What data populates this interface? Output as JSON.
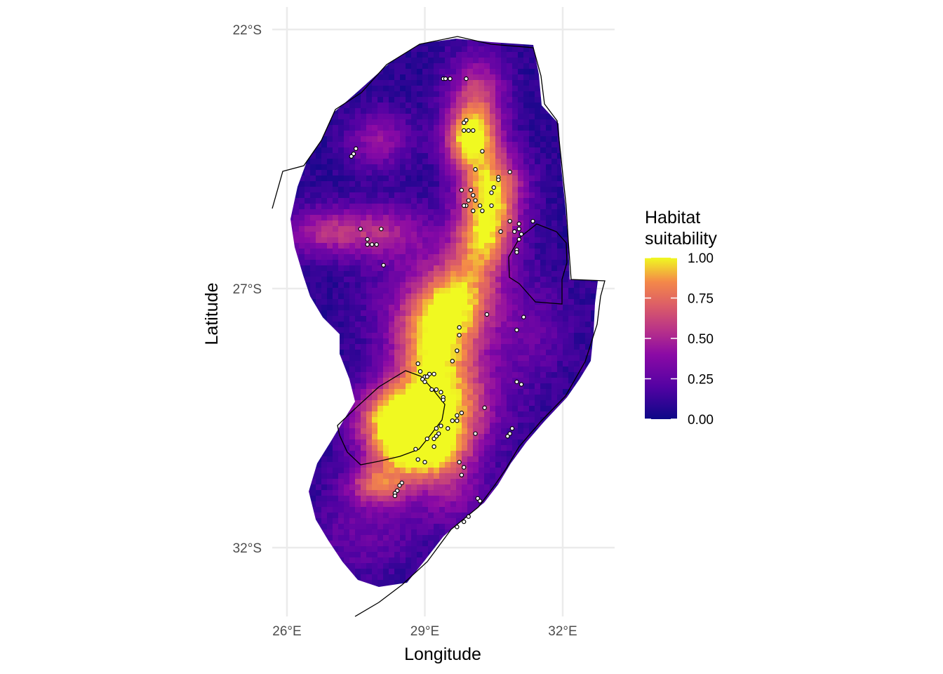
{
  "map": {
    "x_axis_title": "Longitude",
    "y_axis_title": "Latitude",
    "x_ticks": [
      {
        "value": 26,
        "label": "26°E"
      },
      {
        "value": 29,
        "label": "29°E"
      },
      {
        "value": 32,
        "label": "32°E"
      }
    ],
    "y_ticks": [
      {
        "value": -22,
        "label": "22°S"
      },
      {
        "value": -27,
        "label": "27°S"
      },
      {
        "value": -32,
        "label": "32°S"
      }
    ],
    "extent": {
      "lon": [
        25.8,
        32.9
      ],
      "lat": [
        -32.85,
        -21.85
      ]
    },
    "grid": true,
    "palette": "plasma",
    "colors": {
      "palette_stops": [
        "#0d0887",
        "#6a00a8",
        "#b12a90",
        "#e16462",
        "#fca636",
        "#f0f921"
      ],
      "grid": "#ebebeb",
      "border": "#000000",
      "point_fill": "#ffffff"
    }
  },
  "legend": {
    "title_line1": "Habitat",
    "title_line2": "suitability",
    "position": "right",
    "ticks": [
      {
        "value": 1.0,
        "label": "1.00"
      },
      {
        "value": 0.75,
        "label": "0.75"
      },
      {
        "value": 0.5,
        "label": "0.50"
      },
      {
        "value": 0.25,
        "label": "0.25"
      },
      {
        "value": 0.0,
        "label": "0.00"
      }
    ]
  },
  "occurrences": [
    [
      29.4,
      -22.95
    ],
    [
      29.45,
      -22.95
    ],
    [
      29.55,
      -22.95
    ],
    [
      29.9,
      -22.95
    ],
    [
      29.85,
      -23.8
    ],
    [
      29.9,
      -23.75
    ],
    [
      29.85,
      -23.95
    ],
    [
      29.95,
      -23.95
    ],
    [
      30.05,
      -23.95
    ],
    [
      27.5,
      -24.3
    ],
    [
      27.45,
      -24.4
    ],
    [
      27.4,
      -24.45
    ],
    [
      30.25,
      -24.35
    ],
    [
      30.1,
      -24.7
    ],
    [
      30.85,
      -24.75
    ],
    [
      30.6,
      -24.85
    ],
    [
      30.6,
      -24.9
    ],
    [
      29.8,
      -25.1
    ],
    [
      30.0,
      -25.1
    ],
    [
      30.5,
      -25.05
    ],
    [
      30.45,
      -25.15
    ],
    [
      30.05,
      -25.2
    ],
    [
      29.95,
      -25.3
    ],
    [
      30.1,
      -25.3
    ],
    [
      30.2,
      -25.4
    ],
    [
      29.9,
      -25.4
    ],
    [
      29.85,
      -25.4
    ],
    [
      30.45,
      -25.4
    ],
    [
      30.05,
      -25.5
    ],
    [
      30.25,
      -25.5
    ],
    [
      30.85,
      -25.7
    ],
    [
      31.05,
      -25.75
    ],
    [
      31.35,
      -25.7
    ],
    [
      30.65,
      -25.9
    ],
    [
      30.95,
      -25.9
    ],
    [
      31.05,
      -25.85
    ],
    [
      31.1,
      -25.95
    ],
    [
      31.05,
      -26.05
    ],
    [
      27.6,
      -25.85
    ],
    [
      28.05,
      -25.85
    ],
    [
      27.75,
      -26.05
    ],
    [
      27.75,
      -26.15
    ],
    [
      27.85,
      -26.15
    ],
    [
      27.95,
      -26.15
    ],
    [
      31.0,
      -26.25
    ],
    [
      31.0,
      -26.3
    ],
    [
      28.1,
      -26.55
    ],
    [
      30.35,
      -27.5
    ],
    [
      31.15,
      -27.55
    ],
    [
      29.75,
      -27.75
    ],
    [
      31.0,
      -27.8
    ],
    [
      29.75,
      -27.9
    ],
    [
      29.7,
      -28.2
    ],
    [
      29.6,
      -28.4
    ],
    [
      28.85,
      -28.45
    ],
    [
      28.9,
      -28.6
    ],
    [
      29.1,
      -28.65
    ],
    [
      29.0,
      -28.7
    ],
    [
      29.05,
      -28.7
    ],
    [
      29.2,
      -28.65
    ],
    [
      28.95,
      -28.75
    ],
    [
      29.0,
      -28.8
    ],
    [
      31.0,
      -28.8
    ],
    [
      31.1,
      -28.85
    ],
    [
      29.15,
      -28.95
    ],
    [
      29.25,
      -28.95
    ],
    [
      29.35,
      -29.0
    ],
    [
      29.4,
      -29.1
    ],
    [
      29.4,
      -29.15
    ],
    [
      30.3,
      -29.3
    ],
    [
      29.8,
      -29.4
    ],
    [
      29.7,
      -29.45
    ],
    [
      29.6,
      -29.55
    ],
    [
      29.7,
      -29.55
    ],
    [
      29.35,
      -29.65
    ],
    [
      29.25,
      -29.7
    ],
    [
      29.3,
      -29.8
    ],
    [
      29.25,
      -29.85
    ],
    [
      29.05,
      -29.9
    ],
    [
      29.5,
      -29.7
    ],
    [
      30.1,
      -29.8
    ],
    [
      30.9,
      -29.7
    ],
    [
      30.85,
      -29.8
    ],
    [
      30.8,
      -29.85
    ],
    [
      29.2,
      -29.9
    ],
    [
      29.2,
      -30.05
    ],
    [
      28.8,
      -30.1
    ],
    [
      28.85,
      -30.3
    ],
    [
      29.0,
      -30.35
    ],
    [
      29.75,
      -30.35
    ],
    [
      29.85,
      -30.45
    ],
    [
      29.8,
      -30.6
    ],
    [
      28.5,
      -30.75
    ],
    [
      28.45,
      -30.8
    ],
    [
      28.4,
      -30.9
    ],
    [
      28.35,
      -30.95
    ],
    [
      28.35,
      -31.0
    ],
    [
      30.15,
      -31.05
    ],
    [
      30.2,
      -31.1
    ],
    [
      29.95,
      -31.4
    ],
    [
      29.85,
      -31.5
    ],
    [
      29.7,
      -31.6
    ]
  ]
}
